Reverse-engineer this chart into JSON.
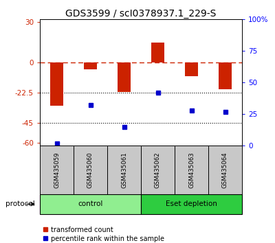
{
  "title": "GDS3599 / scI0378937.1_229-S",
  "samples": [
    "GSM435059",
    "GSM435060",
    "GSM435061",
    "GSM435062",
    "GSM435063",
    "GSM435064"
  ],
  "red_bars": [
    -32,
    -5,
    -22,
    15,
    -10,
    -20
  ],
  "blue_squares": [
    2,
    32,
    15,
    42,
    28,
    27
  ],
  "ylim_left": [
    -62,
    32
  ],
  "ylim_right": [
    0,
    100
  ],
  "yticks_left": [
    30,
    0,
    -22.5,
    -45,
    -60
  ],
  "yticks_right": [
    100,
    75,
    50,
    25,
    0
  ],
  "ytick_labels_left": [
    "30",
    "0",
    "-22.5",
    "-45",
    "-60"
  ],
  "ytick_labels_right": [
    "100%",
    "75",
    "50",
    "25",
    "0"
  ],
  "hlines_dotted": [
    -22.5,
    -45
  ],
  "hline_dash": 0,
  "groups": [
    {
      "label": "control",
      "samples": [
        0,
        1,
        2
      ],
      "color": "#90EE90"
    },
    {
      "label": "Eset depletion",
      "samples": [
        3,
        4,
        5
      ],
      "color": "#2ECC40"
    }
  ],
  "bar_color": "#CC2200",
  "square_color": "#0000CC",
  "protocol_label": "protocol",
  "title_fontsize": 10,
  "tick_fontsize": 7.5,
  "legend_label_red": "transformed count",
  "legend_label_blue": "percentile rank within the sample"
}
